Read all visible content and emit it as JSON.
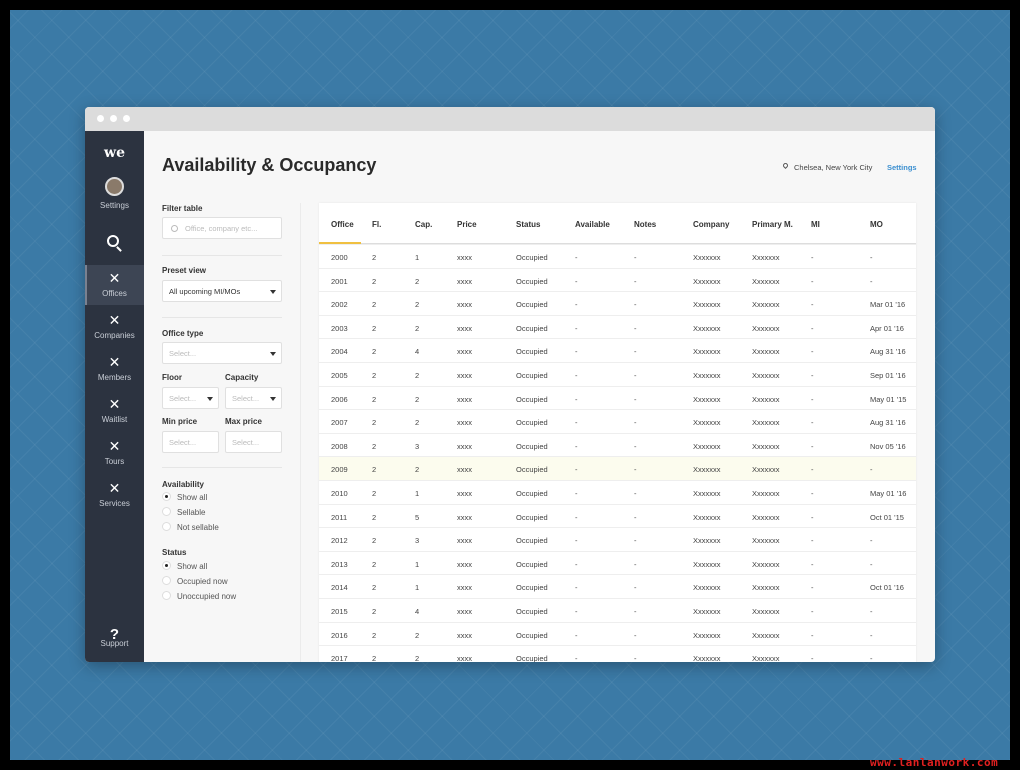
{
  "header": {
    "title": "Availability & Occupancy",
    "location": "Chelsea, New York City",
    "settings_link": "Settings"
  },
  "sidebar": {
    "logo": "we",
    "profile": "Settings",
    "items": [
      "Offices",
      "Companies",
      "Members",
      "Waitlist",
      "Tours",
      "Services"
    ],
    "support_icon": "?",
    "support": "Support"
  },
  "filters": {
    "filter_table": {
      "label": "Filter table",
      "placeholder": "Office, company etc..."
    },
    "preset_view": {
      "label": "Preset view",
      "value": "All upcoming MI/MOs"
    },
    "office_type": {
      "label": "Office type",
      "placeholder": "Select..."
    },
    "floor": {
      "label": "Floor",
      "placeholder": "Select..."
    },
    "capacity": {
      "label": "Capacity",
      "placeholder": "Select..."
    },
    "min_price": {
      "label": "Min price",
      "placeholder": "Select..."
    },
    "max_price": {
      "label": "Max price",
      "placeholder": "Select..."
    },
    "availability": {
      "label": "Availability",
      "options": [
        "Show all",
        "Sellable",
        "Not sellable"
      ]
    },
    "status": {
      "label": "Status",
      "options": [
        "Show all",
        "Occupied now",
        "Unoccupied now"
      ]
    }
  },
  "table": {
    "columns": [
      "Office",
      "Fl.",
      "Cap.",
      "Price",
      "Status",
      "Available",
      "Notes",
      "Company",
      "Primary M.",
      "MI",
      "MO"
    ],
    "rows": [
      [
        "2000",
        "2",
        "1",
        "xxxx",
        "Occupied",
        "-",
        "-",
        "Xxxxxxx",
        "Xxxxxxx",
        "-",
        "-"
      ],
      [
        "2001",
        "2",
        "2",
        "xxxx",
        "Occupied",
        "-",
        "-",
        "Xxxxxxx",
        "Xxxxxxx",
        "-",
        "-"
      ],
      [
        "2002",
        "2",
        "2",
        "xxxx",
        "Occupied",
        "-",
        "-",
        "Xxxxxxx",
        "Xxxxxxx",
        "-",
        "Mar 01 '16"
      ],
      [
        "2003",
        "2",
        "2",
        "xxxx",
        "Occupied",
        "-",
        "-",
        "Xxxxxxx",
        "Xxxxxxx",
        "-",
        "Apr 01 '16"
      ],
      [
        "2004",
        "2",
        "4",
        "xxxx",
        "Occupied",
        "-",
        "-",
        "Xxxxxxx",
        "Xxxxxxx",
        "-",
        "Aug 31 '16"
      ],
      [
        "2005",
        "2",
        "2",
        "xxxx",
        "Occupied",
        "-",
        "-",
        "Xxxxxxx",
        "Xxxxxxx",
        "-",
        "Sep 01 '16"
      ],
      [
        "2006",
        "2",
        "2",
        "xxxx",
        "Occupied",
        "-",
        "-",
        "Xxxxxxx",
        "Xxxxxxx",
        "-",
        "May 01 '15"
      ],
      [
        "2007",
        "2",
        "2",
        "xxxx",
        "Occupied",
        "-",
        "-",
        "Xxxxxxx",
        "Xxxxxxx",
        "-",
        "Aug 31 '16"
      ],
      [
        "2008",
        "2",
        "3",
        "xxxx",
        "Occupied",
        "-",
        "-",
        "Xxxxxxx",
        "Xxxxxxx",
        "-",
        "Nov 05 '16"
      ],
      [
        "2009",
        "2",
        "2",
        "xxxx",
        "Occupied",
        "-",
        "-",
        "Xxxxxxx",
        "Xxxxxxx",
        "-",
        "-"
      ],
      [
        "2010",
        "2",
        "1",
        "xxxx",
        "Occupied",
        "-",
        "-",
        "Xxxxxxx",
        "Xxxxxxx",
        "-",
        "May 01 '16"
      ],
      [
        "2011",
        "2",
        "5",
        "xxxx",
        "Occupied",
        "-",
        "-",
        "Xxxxxxx",
        "Xxxxxxx",
        "-",
        "Oct 01 '15"
      ],
      [
        "2012",
        "2",
        "3",
        "xxxx",
        "Occupied",
        "-",
        "-",
        "Xxxxxxx",
        "Xxxxxxx",
        "-",
        "-"
      ],
      [
        "2013",
        "2",
        "1",
        "xxxx",
        "Occupied",
        "-",
        "-",
        "Xxxxxxx",
        "Xxxxxxx",
        "-",
        "-"
      ],
      [
        "2014",
        "2",
        "1",
        "xxxx",
        "Occupied",
        "-",
        "-",
        "Xxxxxxx",
        "Xxxxxxx",
        "-",
        "Oct 01 '16"
      ],
      [
        "2015",
        "2",
        "4",
        "xxxx",
        "Occupied",
        "-",
        "-",
        "Xxxxxxx",
        "Xxxxxxx",
        "-",
        "-"
      ],
      [
        "2016",
        "2",
        "2",
        "xxxx",
        "Occupied",
        "-",
        "-",
        "Xxxxxxx",
        "Xxxxxxx",
        "-",
        "-"
      ],
      [
        "2017",
        "2",
        "2",
        "xxxx",
        "Occupied",
        "-",
        "-",
        "Xxxxxxx",
        "Xxxxxxx",
        "-",
        "-"
      ]
    ]
  },
  "watermark": "www.lanlanwork.com"
}
